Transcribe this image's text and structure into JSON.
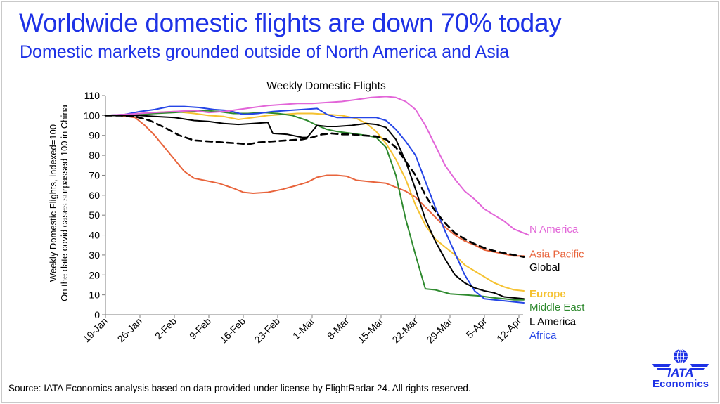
{
  "header": {
    "title": "Worldwide domestic flights are down 70% today",
    "subtitle": "Domestic markets grounded outside of North America and Asia"
  },
  "footer": {
    "source": "Source: IATA Economics analysis based on data provided under license by FlightRadar 24. All rights reserved."
  },
  "logo": {
    "brand": "IATA",
    "unit": "Economics"
  },
  "chart_data": {
    "type": "line",
    "title": "Weekly Domestic Flights",
    "ylabel_line1": "Weekly Domestic Flights, indexed=100",
    "ylabel_line2": "On the date covid cases  surpassed 100 in China",
    "xlabel": "",
    "ylim": [
      0,
      110
    ],
    "yticks": [
      0,
      10,
      20,
      30,
      40,
      50,
      60,
      70,
      80,
      90,
      100,
      110
    ],
    "xlim": [
      0,
      84
    ],
    "xticks": [
      {
        "x": 0,
        "label": "19-Jan"
      },
      {
        "x": 7,
        "label": "26-Jan"
      },
      {
        "x": 14,
        "label": "2-Feb"
      },
      {
        "x": 21,
        "label": "9-Feb"
      },
      {
        "x": 28,
        "label": "16-Feb"
      },
      {
        "x": 35,
        "label": "23-Feb"
      },
      {
        "x": 42,
        "label": "1-Mar"
      },
      {
        "x": 49,
        "label": "8-Mar"
      },
      {
        "x": 56,
        "label": "15-Mar"
      },
      {
        "x": 63,
        "label": "22-Mar"
      },
      {
        "x": 70,
        "label": "29-Mar"
      },
      {
        "x": 77,
        "label": "5-Apr"
      },
      {
        "x": 84,
        "label": "12-Apr"
      }
    ],
    "series": [
      {
        "name": "N America",
        "color": "#e265d8",
        "dashed": false,
        "label_y": 43,
        "points": [
          [
            0,
            100
          ],
          [
            4,
            100.5
          ],
          [
            7,
            101
          ],
          [
            10,
            101.5
          ],
          [
            14,
            102
          ],
          [
            18,
            102.5
          ],
          [
            21,
            101.5
          ],
          [
            24,
            102
          ],
          [
            27,
            103
          ],
          [
            30,
            104
          ],
          [
            33,
            105
          ],
          [
            36,
            105.5
          ],
          [
            39,
            106
          ],
          [
            42,
            106
          ],
          [
            45,
            106.5
          ],
          [
            48,
            107
          ],
          [
            51,
            108
          ],
          [
            54,
            109
          ],
          [
            57,
            109.5
          ],
          [
            59,
            109
          ],
          [
            61,
            107
          ],
          [
            63,
            103
          ],
          [
            65,
            95
          ],
          [
            67,
            85
          ],
          [
            69,
            75
          ],
          [
            71,
            68
          ],
          [
            73,
            62
          ],
          [
            75,
            58
          ],
          [
            77,
            53
          ],
          [
            79,
            50
          ],
          [
            81,
            47
          ],
          [
            83,
            43
          ],
          [
            85,
            41
          ],
          [
            86,
            40
          ]
        ]
      },
      {
        "name": "Asia Pacific",
        "color": "#e8643c",
        "dashed": false,
        "label_y": 30.5,
        "points": [
          [
            0,
            100
          ],
          [
            3,
            100
          ],
          [
            6,
            99
          ],
          [
            8,
            95
          ],
          [
            10,
            90
          ],
          [
            12,
            84
          ],
          [
            14,
            78
          ],
          [
            16,
            72
          ],
          [
            18,
            68.5
          ],
          [
            20,
            67.5
          ],
          [
            23,
            66
          ],
          [
            26,
            63.5
          ],
          [
            28,
            61.5
          ],
          [
            30,
            61
          ],
          [
            33,
            61.5
          ],
          [
            36,
            63
          ],
          [
            39,
            65
          ],
          [
            41,
            66.5
          ],
          [
            43,
            69
          ],
          [
            45,
            70
          ],
          [
            47,
            70
          ],
          [
            49,
            69.5
          ],
          [
            51,
            67.5
          ],
          [
            53,
            67
          ],
          [
            55,
            66.5
          ],
          [
            57,
            66
          ],
          [
            59,
            64
          ],
          [
            61,
            62
          ],
          [
            63,
            59
          ],
          [
            65,
            54
          ],
          [
            67,
            49
          ],
          [
            69,
            44
          ],
          [
            71,
            40
          ],
          [
            73,
            37
          ],
          [
            75,
            35
          ],
          [
            77,
            32.5
          ],
          [
            79,
            31.5
          ],
          [
            81,
            30.5
          ],
          [
            83,
            29.5
          ],
          [
            85,
            29.5
          ]
        ]
      },
      {
        "name": "Global",
        "color": "#000000",
        "dashed": true,
        "label_y": 24,
        "points": [
          [
            0,
            100
          ],
          [
            3,
            100
          ],
          [
            6,
            99.5
          ],
          [
            9,
            97.5
          ],
          [
            12,
            94
          ],
          [
            15,
            90
          ],
          [
            18,
            87.5
          ],
          [
            21,
            87
          ],
          [
            24,
            86.5
          ],
          [
            27,
            86
          ],
          [
            29,
            85.5
          ],
          [
            31,
            86.5
          ],
          [
            34,
            87
          ],
          [
            37,
            87.5
          ],
          [
            40,
            88
          ],
          [
            42,
            89
          ],
          [
            44,
            90.5
          ],
          [
            46,
            91
          ],
          [
            48,
            90.5
          ],
          [
            50,
            90.5
          ],
          [
            52,
            90
          ],
          [
            55,
            89.5
          ],
          [
            57,
            88
          ],
          [
            59,
            84
          ],
          [
            61,
            77
          ],
          [
            63,
            70
          ],
          [
            65,
            60
          ],
          [
            67,
            52
          ],
          [
            69,
            46
          ],
          [
            71,
            41
          ],
          [
            73,
            38
          ],
          [
            75,
            35.5
          ],
          [
            77,
            33.5
          ],
          [
            79,
            32
          ],
          [
            81,
            31
          ],
          [
            83,
            30
          ],
          [
            85,
            29
          ]
        ]
      },
      {
        "name": "Europe",
        "color": "#f5c231",
        "dashed": false,
        "label_y": 10.5,
        "points": [
          [
            0,
            100
          ],
          [
            4,
            100.5
          ],
          [
            7,
            101
          ],
          [
            10,
            101.5
          ],
          [
            14,
            102
          ],
          [
            18,
            101
          ],
          [
            21,
            100
          ],
          [
            24,
            99.5
          ],
          [
            27,
            98
          ],
          [
            30,
            99
          ],
          [
            33,
            100
          ],
          [
            36,
            100.5
          ],
          [
            39,
            101
          ],
          [
            42,
            101
          ],
          [
            45,
            100.5
          ],
          [
            48,
            100
          ],
          [
            51,
            98.5
          ],
          [
            53,
            96
          ],
          [
            55,
            92
          ],
          [
            57,
            86
          ],
          [
            59,
            78
          ],
          [
            61,
            68
          ],
          [
            63,
            55
          ],
          [
            65,
            45
          ],
          [
            67,
            38
          ],
          [
            69,
            34
          ],
          [
            71,
            30
          ],
          [
            73,
            25
          ],
          [
            75,
            22
          ],
          [
            77,
            19
          ],
          [
            79,
            16
          ],
          [
            81,
            14
          ],
          [
            83,
            12.5
          ],
          [
            85,
            12
          ]
        ]
      },
      {
        "name": "Middle East",
        "color": "#2f8a2f",
        "dashed": false,
        "label_y": 3.8,
        "points": [
          [
            0,
            100
          ],
          [
            4,
            100
          ],
          [
            7,
            100.5
          ],
          [
            10,
            101
          ],
          [
            14,
            101.5
          ],
          [
            17,
            102
          ],
          [
            20,
            102.5
          ],
          [
            23,
            102
          ],
          [
            26,
            101
          ],
          [
            29,
            101
          ],
          [
            32,
            101.5
          ],
          [
            35,
            101
          ],
          [
            38,
            100
          ],
          [
            41,
            97.5
          ],
          [
            43,
            95
          ],
          [
            45,
            93
          ],
          [
            47,
            92
          ],
          [
            50,
            91
          ],
          [
            53,
            90
          ],
          [
            55,
            89
          ],
          [
            57,
            84
          ],
          [
            59,
            70
          ],
          [
            61,
            48
          ],
          [
            63,
            30
          ],
          [
            65,
            13
          ],
          [
            67,
            12.5
          ],
          [
            70,
            10.5
          ],
          [
            73,
            10
          ],
          [
            76,
            9.5
          ],
          [
            79,
            8.5
          ],
          [
            81,
            8
          ],
          [
            83,
            7.5
          ],
          [
            85,
            7.5
          ]
        ]
      },
      {
        "name": "L America",
        "color": "#000000",
        "dashed": false,
        "label_y": -3.3,
        "points": [
          [
            0,
            100
          ],
          [
            4,
            100
          ],
          [
            7,
            100
          ],
          [
            10,
            99.5
          ],
          [
            14,
            99
          ],
          [
            18,
            97.5
          ],
          [
            21,
            97
          ],
          [
            24,
            96
          ],
          [
            27,
            95.5
          ],
          [
            30,
            96
          ],
          [
            33,
            96.5
          ],
          [
            34,
            91
          ],
          [
            37,
            90.5
          ],
          [
            40,
            89
          ],
          [
            41,
            89
          ],
          [
            43,
            95
          ],
          [
            45,
            94.5
          ],
          [
            47,
            94.5
          ],
          [
            50,
            95
          ],
          [
            53,
            96
          ],
          [
            55,
            95.5
          ],
          [
            57,
            94
          ],
          [
            59,
            88
          ],
          [
            61,
            77
          ],
          [
            63,
            63
          ],
          [
            65,
            48
          ],
          [
            67,
            37
          ],
          [
            69,
            28
          ],
          [
            71,
            20
          ],
          [
            73,
            16
          ],
          [
            75,
            13.5
          ],
          [
            77,
            12
          ],
          [
            79,
            11
          ],
          [
            81,
            9
          ],
          [
            83,
            8.5
          ],
          [
            85,
            8
          ]
        ]
      },
      {
        "name": "Africa",
        "color": "#2545e6",
        "dashed": false,
        "label_y": -10.3,
        "points": [
          [
            0,
            100
          ],
          [
            4,
            100.5
          ],
          [
            7,
            102
          ],
          [
            10,
            103
          ],
          [
            13,
            104.5
          ],
          [
            16,
            104.5
          ],
          [
            19,
            104
          ],
          [
            22,
            103
          ],
          [
            25,
            102.5
          ],
          [
            28,
            100.5
          ],
          [
            31,
            101
          ],
          [
            34,
            102
          ],
          [
            37,
            102.5
          ],
          [
            40,
            103
          ],
          [
            43,
            103.5
          ],
          [
            45,
            100.5
          ],
          [
            47,
            99
          ],
          [
            50,
            99
          ],
          [
            52,
            99
          ],
          [
            55,
            99
          ],
          [
            57,
            97.5
          ],
          [
            59,
            93
          ],
          [
            61,
            87
          ],
          [
            63,
            80
          ],
          [
            65,
            67
          ],
          [
            67,
            54
          ],
          [
            69,
            42
          ],
          [
            71,
            31
          ],
          [
            73,
            20
          ],
          [
            75,
            12
          ],
          [
            77,
            8
          ],
          [
            79,
            7.5
          ],
          [
            81,
            7
          ],
          [
            83,
            6.5
          ],
          [
            85,
            6
          ]
        ]
      }
    ]
  }
}
